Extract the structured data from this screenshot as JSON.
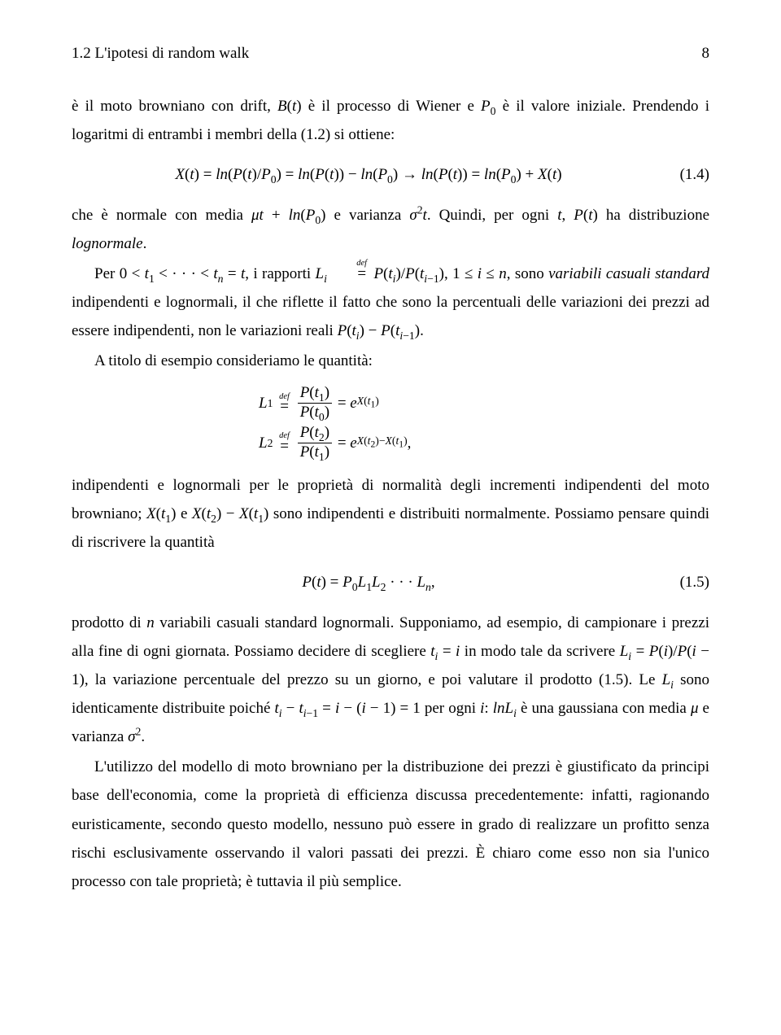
{
  "header": {
    "section_label": "1.2 L'ipotesi di random walk",
    "page_number": "8"
  },
  "para1_a": "è il moto browniano con drift, ",
  "para1_b": " è il processo di Wiener e ",
  "para1_c": " è il valore iniziale. Prendendo i logaritmi di entrambi i membri della (1.2) si ottiene:",
  "eq14_num": "(1.4)",
  "para2_a": "che è normale con media ",
  "para2_b": " e varianza ",
  "para2_c": ". Quindi, per ogni ",
  "para2_d": " ha distribuzione ",
  "para2_e": "lognormale",
  "para2_f": ".",
  "para3_a": "Per ",
  "para3_b": ", i rapporti ",
  "para3_c": ", sono ",
  "para3_d": "variabili casuali standard",
  "para3_e": " indipendenti e lognormali, il che riflette il fatto che sono la percentuali delle variazioni dei prezzi ad essere indipendenti, non le variazioni reali ",
  "para3_f": ".",
  "para4": "A titolo di esempio consideriamo le quantità:",
  "para5_a": "indipendenti e lognormali per le proprietà di normalità degli incrementi indipendenti del moto browniano; ",
  "para5_b": " e ",
  "para5_c": " sono indipendenti e distribuiti normalmente. Possiamo pensare quindi di riscrivere la quantità",
  "eq15_num": "(1.5)",
  "para6_a": "prodotto di ",
  "para6_b": " variabili casuali standard lognormali. Supponiamo, ad esempio, di campionare i prezzi alla fine di ogni giornata. Possiamo decidere di scegliere ",
  "para6_c": " in modo tale da scrivere ",
  "para6_d": ", la variazione percentuale del prezzo su un giorno, e poi valutare il prodotto (1.5). Le ",
  "para6_e": " sono identicamente distribuite poiché ",
  "para6_f": " per ogni ",
  "para6_g": " è una gaussiana con media ",
  "para6_h": " e varianza ",
  "para6_i": ".",
  "para7": "L'utilizzo del modello di moto browniano per la distribuzione dei prezzi è giustificato da principi base dell'economia, come la proprietà di efficienza discussa precedentemente: infatti, ragionando euristicamente, secondo questo modello, nessuno può essere in grado di realizzare un profitto senza rischi esclusivamente osservando il valori passati dei prezzi. È chiaro come esso non sia l'unico processo con tale proprietà; è tuttavia il più semplice."
}
